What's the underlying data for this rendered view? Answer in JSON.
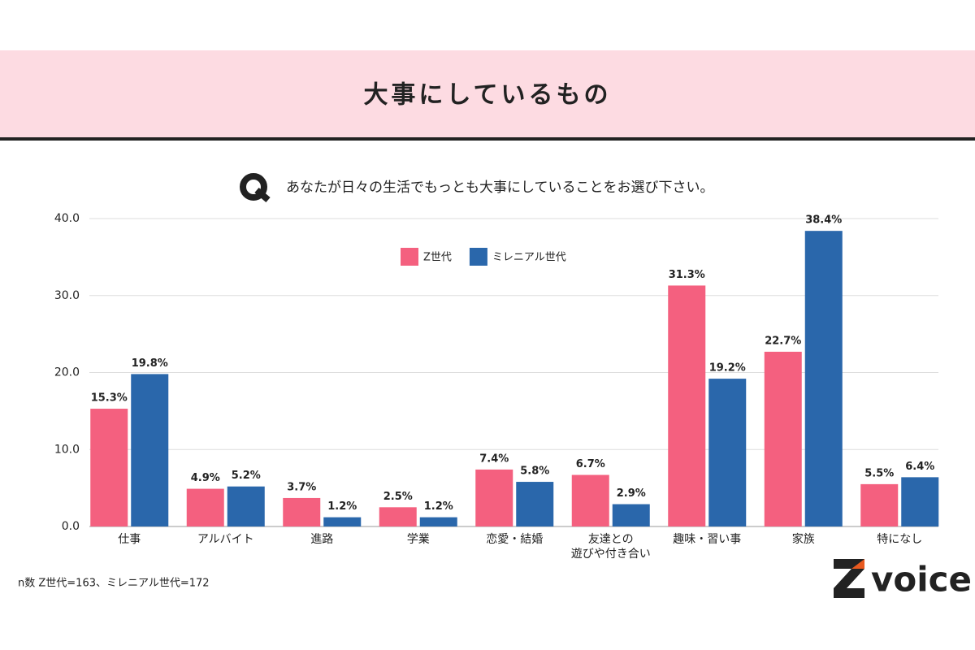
{
  "title": "大事にしているもの",
  "question": "あなたが日々の生活でもっとも大事にしていることをお選び下さい。",
  "footnote": "n数 Z世代=163、ミレニアル世代=172",
  "logo": "voice",
  "chart_data": {
    "type": "bar",
    "categories": [
      "仕事",
      "アルバイト",
      "進路",
      "学業",
      "恋愛・結婚",
      "友達との\n遊びや付き合い",
      "趣味・習い事",
      "家族",
      "特になし"
    ],
    "series": [
      {
        "name": "Z世代",
        "color": "#f4607f",
        "label_color": "#d8285a",
        "values": [
          15.3,
          4.9,
          3.7,
          2.5,
          7.4,
          6.7,
          31.3,
          22.7,
          5.5
        ],
        "value_labels": [
          "15.3%",
          "4.9%",
          "3.7%",
          "2.5%",
          "7.4%",
          "6.7%",
          "31.3%",
          "22.7%",
          "5.5%"
        ]
      },
      {
        "name": "ミレニアル世代",
        "color": "#2a67ab",
        "label_color": "#1e4f8a",
        "values": [
          19.8,
          5.2,
          1.2,
          1.2,
          5.8,
          2.9,
          19.2,
          38.4,
          6.4
        ],
        "value_labels": [
          "19.8%",
          "5.2%",
          "1.2%",
          "1.2%",
          "5.8%",
          "2.9%",
          "19.2%",
          "38.4%",
          "6.4%"
        ]
      }
    ],
    "ylim": [
      0,
      40
    ],
    "yticks": [
      {
        "value": 0,
        "label": "0.0"
      },
      {
        "value": 10,
        "label": "10.0"
      },
      {
        "value": 20,
        "label": "20.0"
      },
      {
        "value": 30,
        "label": "30.0"
      },
      {
        "value": 40,
        "label": "40.0"
      }
    ],
    "grid": true
  }
}
